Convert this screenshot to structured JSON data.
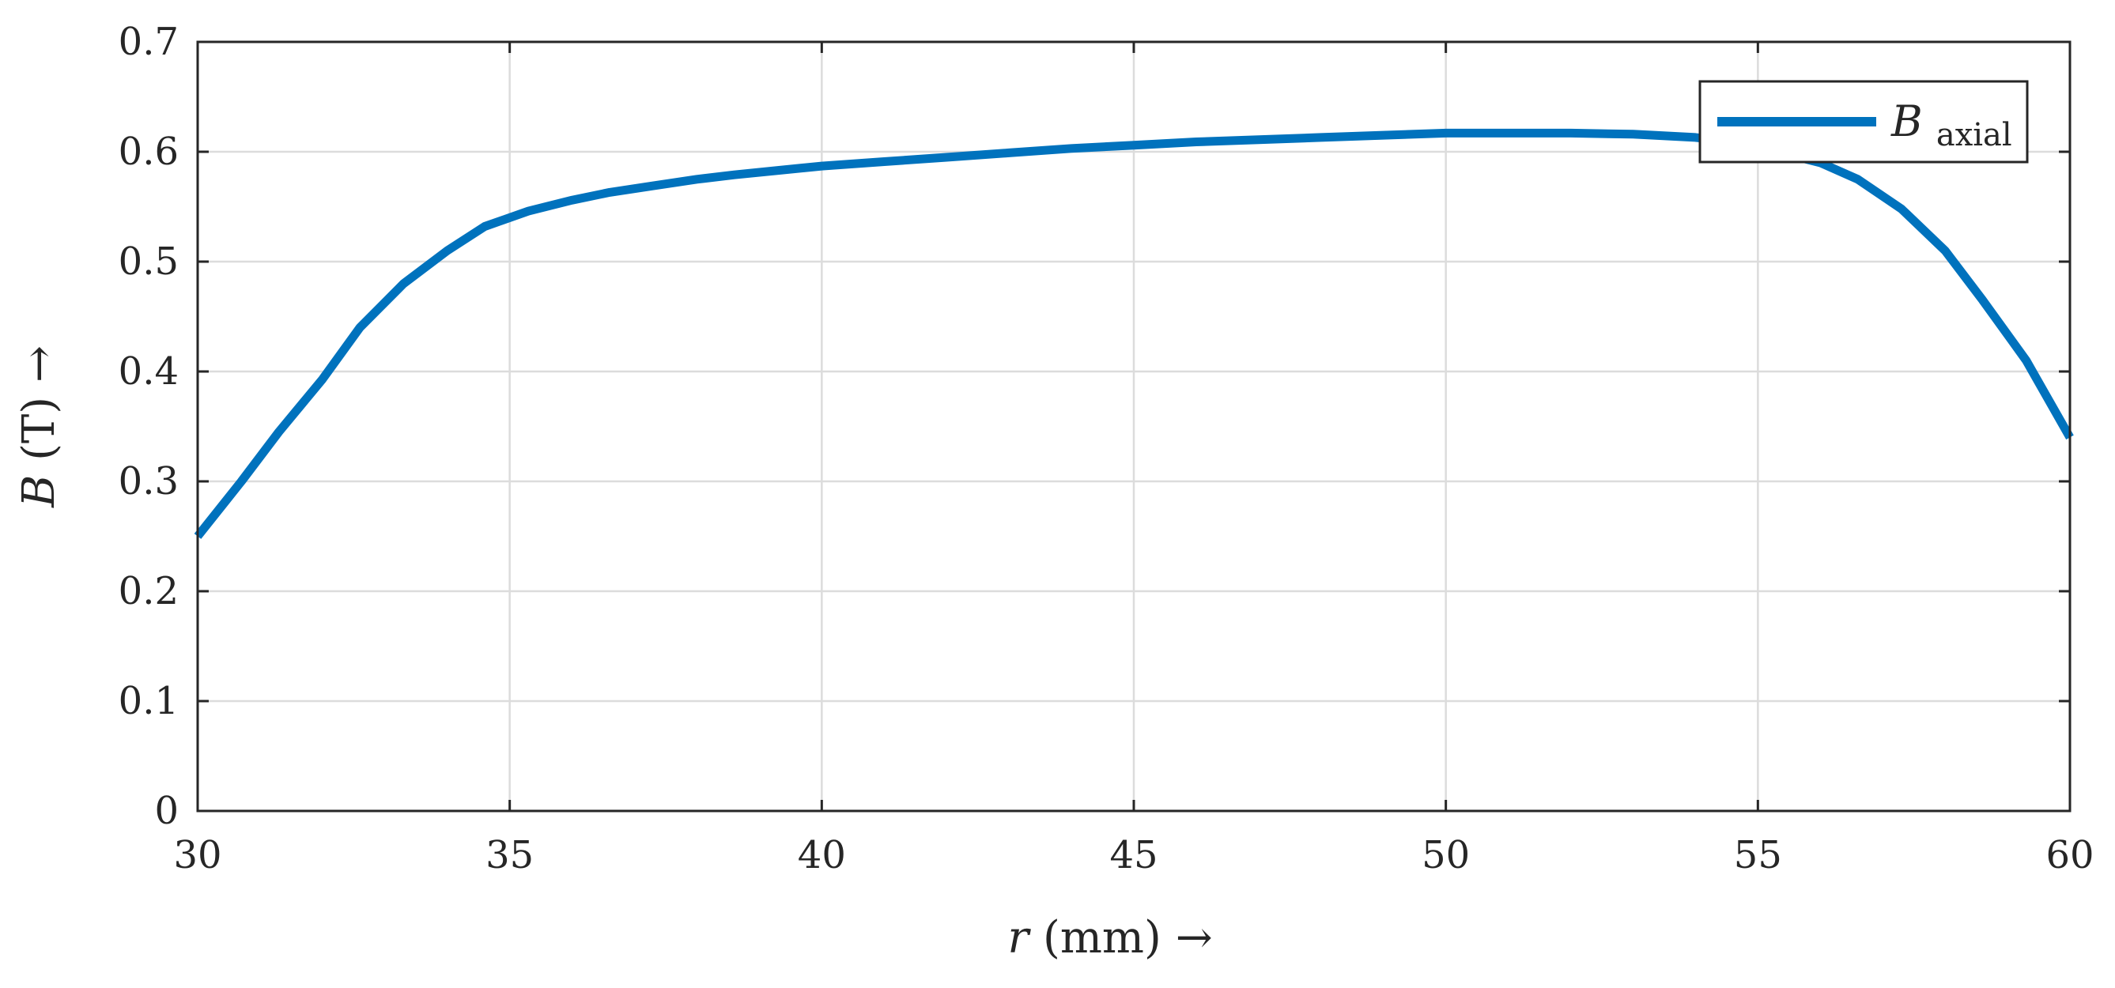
{
  "chart_data": {
    "type": "line",
    "xlabel_var": "r",
    "xlabel_unit": "(mm)",
    "xlabel_arrow": "→",
    "ylabel_var": "B",
    "ylabel_unit": "(T)",
    "ylabel_arrow": "→",
    "xlim": [
      30,
      60
    ],
    "ylim": [
      0,
      0.7
    ],
    "xticks": [
      30,
      35,
      40,
      45,
      50,
      55,
      60
    ],
    "yticks": [
      0,
      0.1,
      0.2,
      0.3,
      0.4,
      0.5,
      0.6,
      0.7
    ],
    "xtick_labels": [
      "30",
      "35",
      "40",
      "45",
      "50",
      "55",
      "60"
    ],
    "ytick_labels": [
      "0",
      "0.1",
      "0.2",
      "0.3",
      "0.4",
      "0.5",
      "0.6",
      "0.7"
    ],
    "grid": true,
    "legend_placement": "top-right",
    "series": [
      {
        "name_main": "B",
        "name_sub": "axial",
        "color": "#0072BD",
        "x": [
          30,
          30.7,
          31.3,
          32.0,
          32.6,
          33.3,
          34.0,
          34.6,
          35.3,
          36.0,
          36.6,
          37.3,
          38.0,
          38.6,
          39.3,
          40.0,
          41.0,
          42.0,
          43.0,
          44.0,
          45.0,
          46.0,
          47.0,
          48.0,
          49.0,
          50.0,
          51.0,
          52.0,
          53.0,
          54.0,
          54.6,
          55.3,
          56.0,
          56.6,
          57.3,
          58.0,
          58.6,
          59.3,
          60.0
        ],
        "y": [
          0.25,
          0.3,
          0.345,
          0.393,
          0.44,
          0.48,
          0.51,
          0.532,
          0.546,
          0.556,
          0.563,
          0.569,
          0.575,
          0.579,
          0.583,
          0.587,
          0.591,
          0.595,
          0.599,
          0.603,
          0.606,
          0.609,
          0.611,
          0.613,
          0.615,
          0.617,
          0.617,
          0.617,
          0.616,
          0.613,
          0.609,
          0.6,
          0.59,
          0.575,
          0.548,
          0.51,
          0.465,
          0.41,
          0.34
        ]
      }
    ]
  }
}
